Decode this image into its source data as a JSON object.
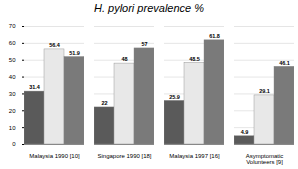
{
  "chart_data": {
    "type": "bar",
    "title": "H. pylori prevalence  %",
    "categories": [
      "Malaysia 1990 [10]",
      "Singapore 1990 [18]",
      "Malaysia 1997 [16]",
      "Asymptomatic\nVolunteers [9]"
    ],
    "series": [
      {
        "color": "#5a5a5a",
        "values": [
          31.4,
          22,
          25.9,
          4.9
        ]
      },
      {
        "color": "#e8e8e8",
        "values": [
          56.4,
          48,
          48.5,
          29.1
        ]
      },
      {
        "color": "#7a7a7a",
        "values": [
          51.9,
          57,
          61.8,
          46.1
        ]
      }
    ],
    "ylim": [
      0,
      70
    ],
    "yticks": [
      0,
      10,
      20,
      30,
      40,
      50,
      60,
      70
    ],
    "grid": true,
    "data_labels": true
  }
}
